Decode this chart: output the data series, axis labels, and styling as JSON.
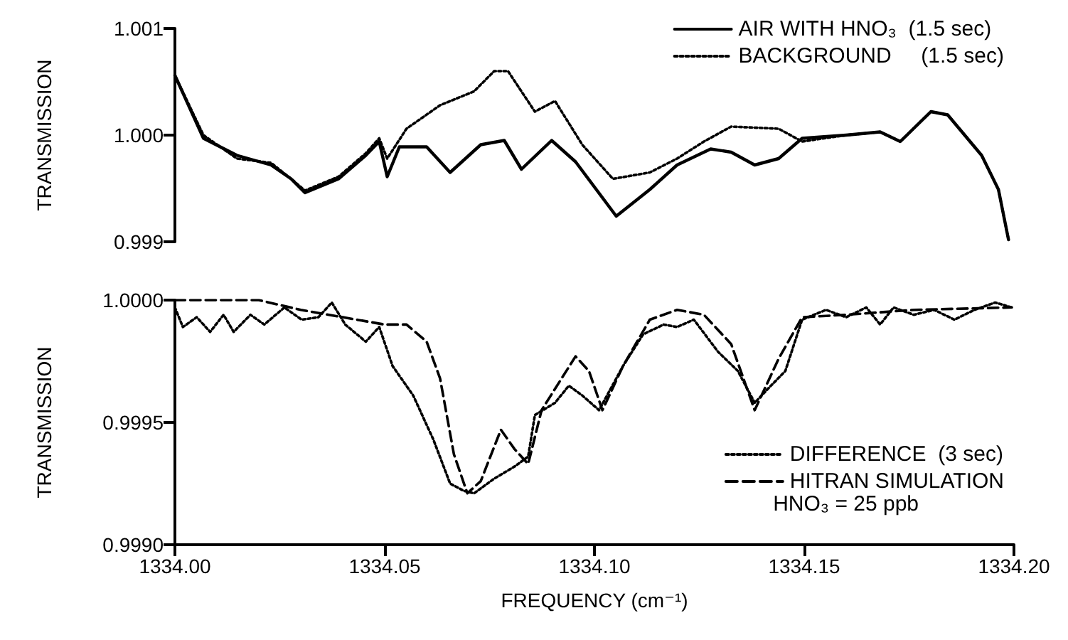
{
  "chart_data": [
    {
      "type": "line",
      "ylabel": "TRANSMISSION",
      "xlim": [
        1334.0,
        1334.2
      ],
      "ylim": [
        0.999,
        1.001
      ],
      "yticks": [
        {
          "value": 0.999,
          "label": "0.999"
        },
        {
          "value": 1.0,
          "label": "1.000"
        },
        {
          "value": 1.001,
          "label": "1.001"
        }
      ],
      "tick_labels": "y",
      "grid": false,
      "legend": "top right",
      "marker": "none",
      "series": [
        {
          "name": "AIR WITH HNO₃  (1.5 sec)",
          "color": "#000000",
          "line_style": "solid",
          "x": [
            1334.0,
            1334.0068,
            1334.0148,
            1334.0229,
            1334.0277,
            1334.031,
            1334.039,
            1334.0455,
            1334.0487,
            1334.0506,
            1334.0535,
            1334.06,
            1334.0656,
            1334.0729,
            1334.0785,
            1334.0826,
            1334.0898,
            1334.0955,
            1334.1052,
            1334.1132,
            1334.1197,
            1334.1277,
            1334.1326,
            1334.1382,
            1334.1439,
            1334.1495,
            1334.16,
            1334.1681,
            1334.1729,
            1334.1802,
            1334.1842,
            1334.1923,
            1334.1963,
            1334.1987
          ],
          "values": [
            1.00056,
            0.99997,
            0.99981,
            0.99972,
            0.99959,
            0.99946,
            0.99959,
            0.99981,
            0.99994,
            0.99961,
            0.99989,
            0.99989,
            0.99965,
            0.99991,
            0.99995,
            0.99968,
            0.99995,
            0.99975,
            0.99924,
            0.99949,
            0.99972,
            0.99987,
            0.99984,
            0.99972,
            0.99978,
            0.99997,
            1.0,
            1.00003,
            0.99994,
            1.00022,
            1.00019,
            0.99981,
            0.99949,
            0.99902
          ]
        },
        {
          "name": "BACKGROUND     (1.5 sec)",
          "color": "#000000",
          "line_style": "dotted",
          "x": [
            1334.0,
            1334.0068,
            1334.0148,
            1334.0229,
            1334.0277,
            1334.031,
            1334.039,
            1334.0455,
            1334.0487,
            1334.0506,
            1334.0552,
            1334.0632,
            1334.0713,
            1334.0761,
            1334.0794,
            1334.0858,
            1334.0906,
            1334.0971,
            1334.1044,
            1334.1132,
            1334.1197,
            1334.1261,
            1334.1326,
            1334.1439,
            1334.1495,
            1334.16,
            1334.1681,
            1334.1729,
            1334.1802,
            1334.1842,
            1334.1923,
            1334.1963,
            1334.1987
          ],
          "values": [
            1.00056,
            1.0,
            0.99978,
            0.99974,
            0.99959,
            0.99948,
            0.99961,
            0.99983,
            0.99997,
            0.99978,
            1.00006,
            1.00028,
            1.00041,
            1.0006,
            1.0006,
            1.00022,
            1.00032,
            0.99991,
            0.99959,
            0.99965,
            0.99978,
            0.99994,
            1.00008,
            1.00006,
            0.99994,
            1.0,
            1.00003,
            0.99994,
            1.00022,
            1.00019,
            0.99981,
            0.99949,
            0.99902
          ]
        }
      ]
    },
    {
      "type": "line",
      "ylabel": "TRANSMISSION",
      "xlabel": "FREQUENCY (cm⁻¹)",
      "xlim": [
        1334.0,
        1334.2
      ],
      "ylim": [
        0.999,
        1.0
      ],
      "xticks": [
        {
          "value": 1334.0,
          "label": "1334.00"
        },
        {
          "value": 1334.05,
          "label": "1334.05"
        },
        {
          "value": 1334.1,
          "label": "1334.10"
        },
        {
          "value": 1334.15,
          "label": "1334.15"
        },
        {
          "value": 1334.2,
          "label": "1334.20"
        }
      ],
      "yticks": [
        {
          "value": 0.999,
          "label": "0.9990"
        },
        {
          "value": 0.9995,
          "label": "0.9995"
        },
        {
          "value": 1.0,
          "label": "1.0000"
        }
      ],
      "grid": false,
      "legend": "right",
      "marker": "none",
      "annotations": [
        "HNO₃ = 25 ppb"
      ],
      "series": [
        {
          "name": "DIFFERENCE  (3 sec)",
          "color": "#000000",
          "line_style": "dotted",
          "x": [
            1334.0,
            1334.0019,
            1334.0052,
            1334.0084,
            1334.0116,
            1334.014,
            1334.018,
            1334.0213,
            1334.0261,
            1334.0302,
            1334.0342,
            1334.0374,
            1334.0406,
            1334.0455,
            1334.0487,
            1334.0519,
            1334.0568,
            1334.0616,
            1334.0656,
            1334.0689,
            1334.0713,
            1334.0761,
            1334.081,
            1334.0842,
            1334.0858,
            1334.0906,
            1334.0939,
            1334.0971,
            1334.1011,
            1334.1068,
            1334.1116,
            1334.1165,
            1334.1197,
            1334.1237,
            1334.1294,
            1334.1342,
            1334.1382,
            1334.1415,
            1334.1455,
            1334.1495,
            1334.1552,
            1334.16,
            1334.1648,
            1334.1681,
            1334.1713,
            1334.1761,
            1334.181,
            1334.1858,
            1334.1906,
            1334.1955,
            1334.1995
          ],
          "values": [
            0.99997,
            0.99989,
            0.99993,
            0.99987,
            0.99994,
            0.99987,
            0.99994,
            0.9999,
            0.99997,
            0.99992,
            0.99993,
            0.99999,
            0.9999,
            0.99983,
            0.99989,
            0.99973,
            0.99961,
            0.99943,
            0.99925,
            0.99922,
            0.99921,
            0.99927,
            0.99932,
            0.99936,
            0.99953,
            0.99958,
            0.99965,
            0.99961,
            0.99955,
            0.99973,
            0.99986,
            0.9999,
            0.99989,
            0.99992,
            0.99979,
            0.99971,
            0.99958,
            0.99964,
            0.99971,
            0.99992,
            0.99996,
            0.99993,
            0.99997,
            0.9999,
            0.99997,
            0.99994,
            0.99996,
            0.99992,
            0.99996,
            0.99999,
            0.99997
          ]
        },
        {
          "name": "HITRAN SIMULATION",
          "color": "#000000",
          "line_style": "dashed",
          "x": [
            1334.0,
            1334.02,
            1334.03,
            1334.04,
            1334.05,
            1334.0552,
            1334.06,
            1334.0632,
            1334.0665,
            1334.0697,
            1334.0729,
            1334.0777,
            1334.081,
            1334.0842,
            1334.0874,
            1334.0955,
            1334.0987,
            1334.1019,
            1334.1068,
            1334.1132,
            1334.1197,
            1334.1261,
            1334.1326,
            1334.1382,
            1334.1439,
            1334.1495,
            1334.16,
            1334.1761,
            1334.1995
          ],
          "values": [
            1.0,
            1.0,
            0.99996,
            0.99993,
            0.9999,
            0.9999,
            0.99983,
            0.99968,
            0.99937,
            0.99921,
            0.99926,
            0.99947,
            0.99939,
            0.99933,
            0.99955,
            0.99977,
            0.99971,
            0.99955,
            0.99973,
            0.99992,
            0.99996,
            0.99994,
            0.99982,
            0.99955,
            0.99976,
            0.99993,
            0.99994,
            0.99996,
            0.99997
          ]
        }
      ]
    }
  ]
}
